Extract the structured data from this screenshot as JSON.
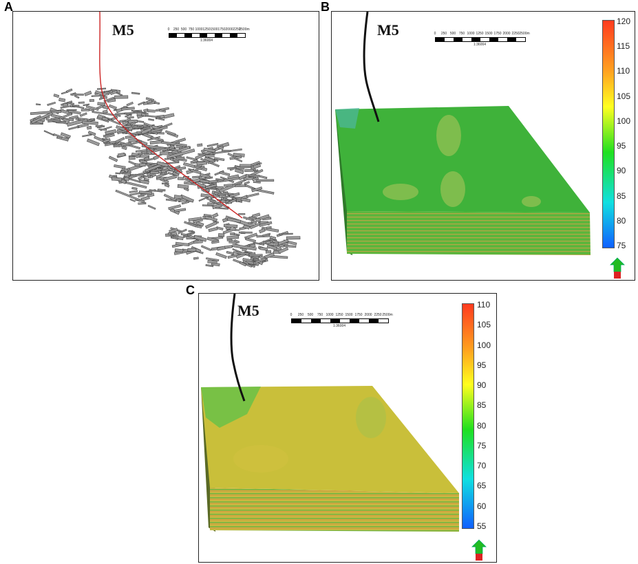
{
  "panels": {
    "a": {
      "letter": "A",
      "well": "M5",
      "scale": {
        "ticks": [
          "0",
          "250",
          "500",
          "750",
          "1000",
          "1250",
          "1500",
          "1750",
          "2000",
          "2250",
          "2500m"
        ],
        "ratio": "1:36004"
      }
    },
    "b": {
      "letter": "B",
      "well": "M5",
      "scale": {
        "ticks": [
          "0",
          "250",
          "500",
          "750",
          "1000",
          "1250",
          "1500",
          "1750",
          "2000",
          "2250",
          "2500m"
        ],
        "ratio": "1:36004"
      },
      "colorbar": {
        "max": 120,
        "min": 75,
        "labels": [
          "120",
          "115",
          "110",
          "105",
          "100",
          "95",
          "90",
          "85",
          "80",
          "75"
        ]
      }
    },
    "c": {
      "letter": "C",
      "well": "M5",
      "scale": {
        "ticks": [
          "0",
          "250",
          "500",
          "750",
          "1000",
          "1250",
          "1500",
          "1750",
          "2000",
          "2250",
          "2500m"
        ],
        "ratio": "1:36004"
      },
      "colorbar": {
        "max": 110,
        "min": 55,
        "labels": [
          "110",
          "105",
          "100",
          "95",
          "90",
          "85",
          "80",
          "75",
          "70",
          "65",
          "60",
          "55"
        ]
      }
    }
  },
  "colors": {
    "well_trajectory_a": "#cc2222",
    "well_trajectory": "#111111",
    "fracture_fill": "#9a9a9a",
    "model_b_top": "#3fb23a",
    "model_c_top": "#c9bf3a",
    "colorbar_stops": [
      "#ff3b1f",
      "#ffa020",
      "#ffff20",
      "#20e020",
      "#10e0e0",
      "#1060ff"
    ]
  }
}
